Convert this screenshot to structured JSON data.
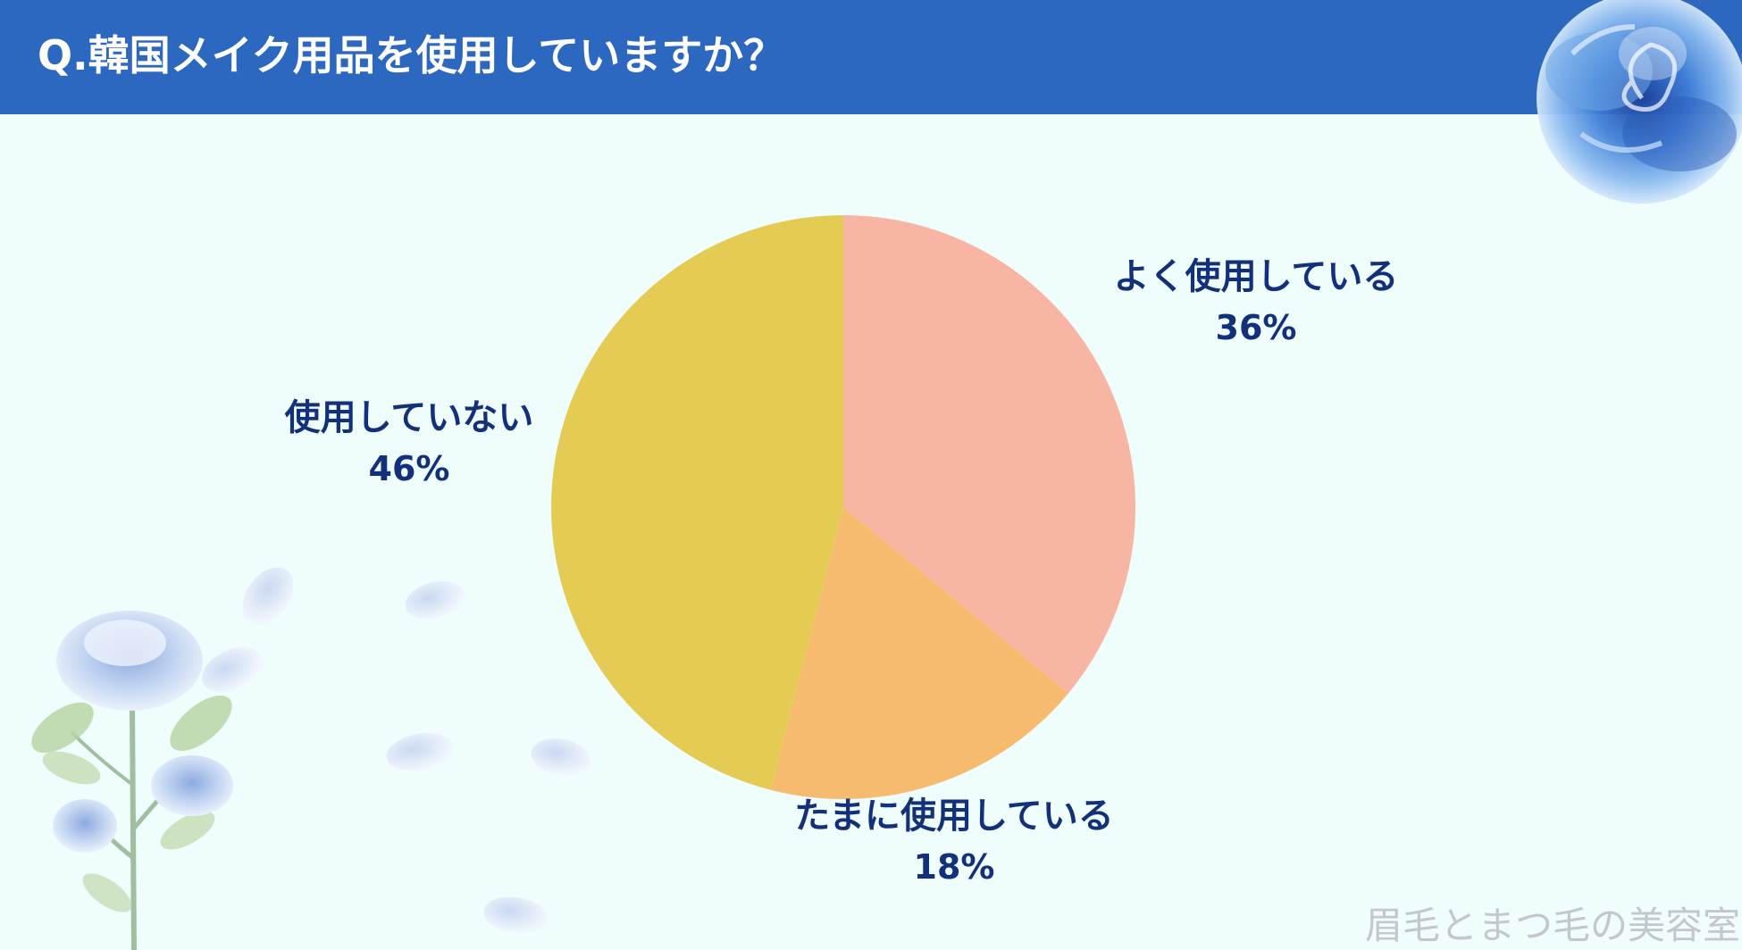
{
  "title": "Q.韓国メイク用品を使用していますか？",
  "watermark": "眉毛とまつ毛の美容室",
  "chart_data": {
    "type": "pie",
    "title": "Q.韓国メイク用品を使用していますか？",
    "start_angle_deg": 0,
    "direction": "clockwise",
    "legend": "none",
    "slices": [
      {
        "label": "よく使用している",
        "value": 36,
        "display": "36%",
        "color": "#f9b5a3"
      },
      {
        "label": "たまに使用している",
        "value": 18,
        "display": "18%",
        "color": "#f6bb6f"
      },
      {
        "label": "使用していない",
        "value": 46,
        "display": "46%",
        "color": "#e4cc54"
      }
    ]
  },
  "colors": {
    "header": "#2d68c0",
    "background": "#f0fdfd",
    "label_text": "#13307a"
  },
  "decorations": {
    "top_right": "blue-rose-icon",
    "bottom_left": "blue-rose-branch-icon"
  }
}
